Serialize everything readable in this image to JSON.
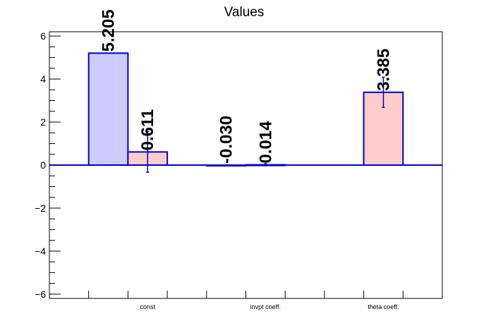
{
  "chart_data": {
    "type": "bar",
    "title": "Values",
    "xlabel": "",
    "ylabel": "",
    "ylim": [
      -6.2,
      6.2
    ],
    "y_ticks": [
      -6,
      -4,
      -2,
      0,
      2,
      4,
      6
    ],
    "categories": [
      "const",
      "invpt coeff.",
      "theta coeff."
    ],
    "bars": [
      {
        "category": "const",
        "series": "blue",
        "value": 5.205,
        "label": "5.205",
        "error": null
      },
      {
        "category": "const",
        "series": "red",
        "value": 0.611,
        "label": "0.611",
        "error": 0.95
      },
      {
        "category": "invpt coeff.",
        "series": "blue",
        "value": -0.03,
        "label": "-0.030",
        "error": null
      },
      {
        "category": "invpt coeff.",
        "series": "red",
        "value": 0.014,
        "label": "0.014",
        "error": 0.05
      },
      {
        "category": "theta coeff.",
        "series": "blue",
        "value": null,
        "label": "",
        "error": null
      },
      {
        "category": "theta coeff.",
        "series": "red",
        "value": 3.385,
        "label": "3.385",
        "error": 0.7
      }
    ],
    "colors": {
      "blue_fill": "#ccccff",
      "red_fill": "#ffcccc",
      "outline": "#0000cc"
    },
    "grid": false,
    "legend": "none"
  }
}
